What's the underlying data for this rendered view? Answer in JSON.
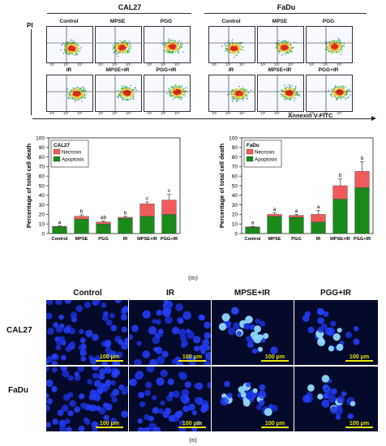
{
  "flow": {
    "cell_lines": [
      "CAL27",
      "FaDu"
    ],
    "row1_labels": [
      "Control",
      "MPSE",
      "PGG",
      "Control",
      "MPSE",
      "PGG"
    ],
    "row2_labels": [
      "IR",
      "MPSE+IR",
      "PGG+IR",
      "IR",
      "MPSE+IR",
      "PGG+IR"
    ],
    "y_axis": "PI",
    "x_axis": "Annexin V-FITC",
    "ticks": [
      "10¹",
      "10²",
      "10³"
    ]
  },
  "chart_data": [
    {
      "type": "bar",
      "stacked": true,
      "legend_title": "CAL27",
      "legend_placement": "top-left",
      "categories": [
        "Control",
        "MPSE",
        "PGG",
        "IR",
        "MPSE+IR",
        "PGG+IR"
      ],
      "series": [
        {
          "name": "Apoptosis",
          "color": "#1a8a1a",
          "values": [
            7,
            15,
            10,
            16,
            18,
            20
          ]
        },
        {
          "name": "Necrosis",
          "color": "#f05a5a",
          "values": [
            0.5,
            3,
            2,
            1,
            13,
            15
          ]
        }
      ],
      "error": [
        0.5,
        1.5,
        1,
        1,
        2,
        6
      ],
      "letters": [
        "a",
        "b",
        "ab",
        "b",
        "c",
        "c"
      ],
      "ylabel": "Percentage of total cell death",
      "yticks": [
        0,
        10,
        20,
        30,
        40,
        50,
        60,
        70,
        80,
        90,
        100
      ],
      "ylim": [
        0,
        100
      ]
    },
    {
      "type": "bar",
      "stacked": true,
      "legend_title": "FaDu",
      "legend_placement": "top-left",
      "categories": [
        "Control",
        "MPSE",
        "PGG",
        "IR",
        "MPSE+IR",
        "PGG+IR"
      ],
      "series": [
        {
          "name": "Apoptosis",
          "color": "#1a8a1a",
          "values": [
            6.5,
            18,
            17,
            12,
            36,
            48
          ]
        },
        {
          "name": "Necrosis",
          "color": "#f05a5a",
          "values": [
            0.5,
            2,
            2,
            8,
            14,
            17
          ]
        }
      ],
      "error": [
        0.5,
        1.5,
        1,
        4,
        7,
        10
      ],
      "letters": [
        "a",
        "a",
        "a",
        "a",
        "b",
        "b"
      ],
      "ylabel": "Percentage of total cell death",
      "yticks": [
        0,
        10,
        20,
        30,
        40,
        50,
        60,
        70,
        80,
        90,
        100
      ],
      "ylim": [
        0,
        100
      ]
    }
  ],
  "caption_m": "(m)",
  "caption_n": "(n)",
  "micro": {
    "columns": [
      "Control",
      "IR",
      "MPSE+IR",
      "PGG+IR"
    ],
    "rows": [
      "CAL27",
      "FaDu"
    ],
    "scale": "100 μm"
  }
}
